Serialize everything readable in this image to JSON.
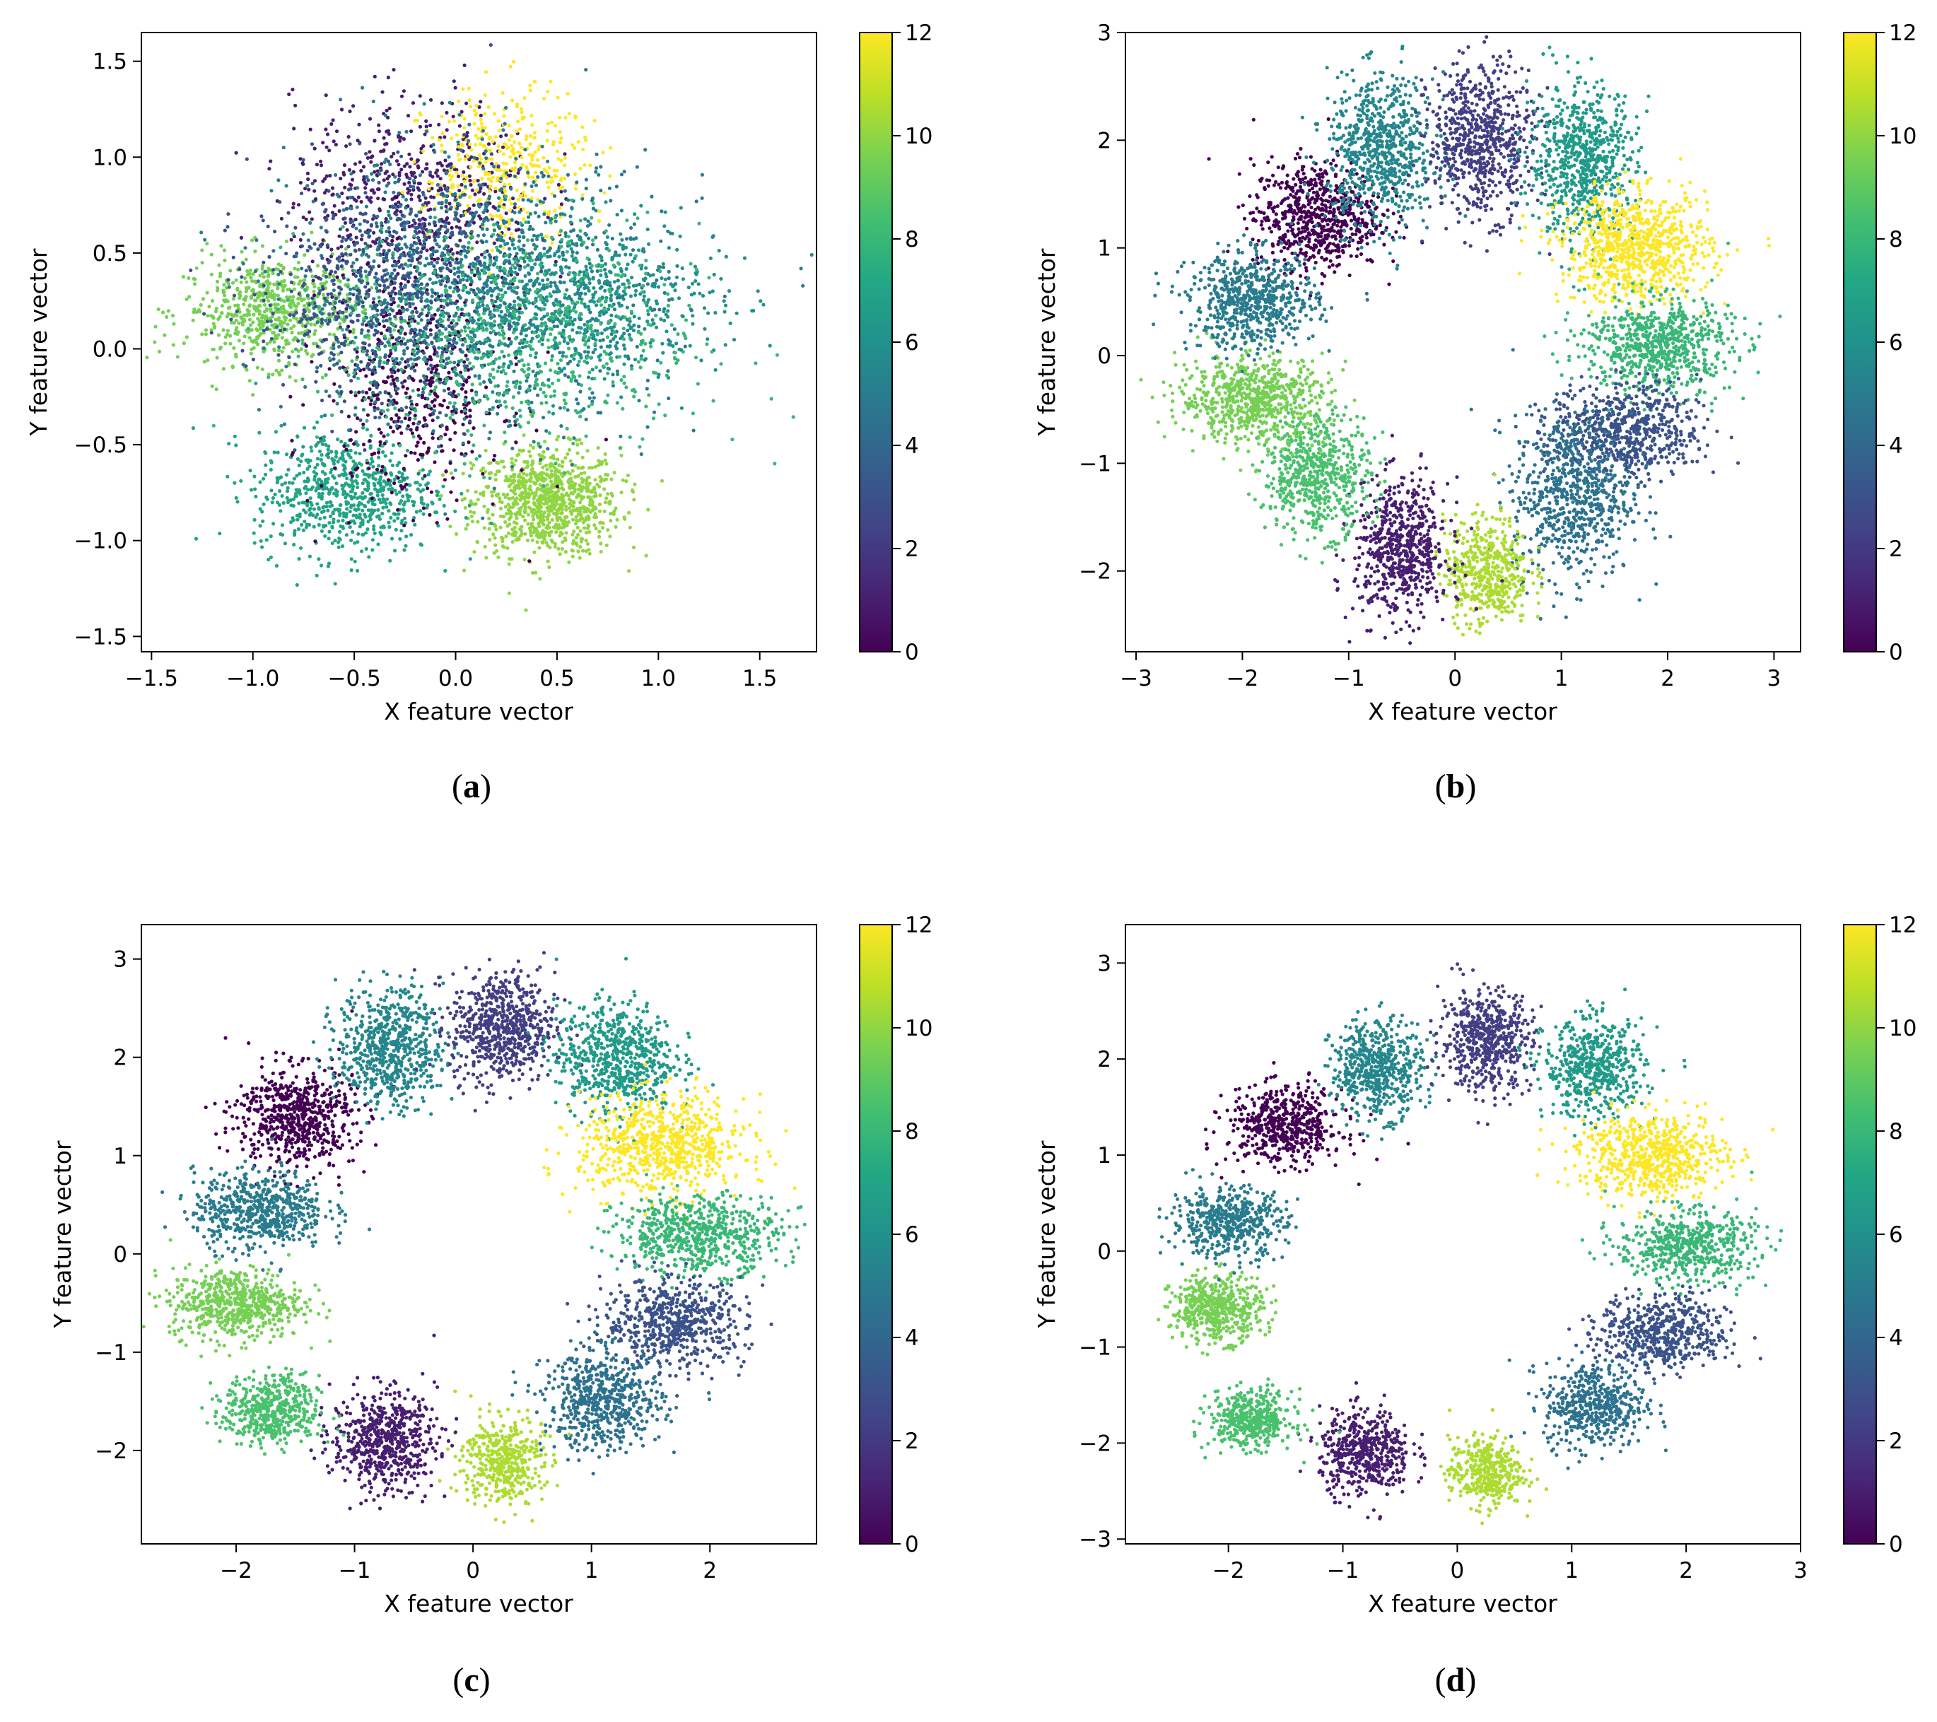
{
  "figure": {
    "panels": [
      {
        "id": "a",
        "caption_label": "a"
      },
      {
        "id": "b",
        "caption_label": "b"
      },
      {
        "id": "c",
        "caption_label": "c"
      },
      {
        "id": "d",
        "caption_label": "d"
      }
    ]
  },
  "chart_data": [
    {
      "type": "scatter",
      "panel": "a",
      "xlabel": "X feature vector",
      "ylabel": "Y feature vector",
      "xlim": [
        -1.55,
        1.78
      ],
      "ylim": [
        -1.58,
        1.65
      ],
      "xticks": [
        -1.5,
        -1.0,
        -0.5,
        0.0,
        0.5,
        1.0,
        1.5
      ],
      "xtick_labels": [
        "−1.5",
        "−1.0",
        "−0.5",
        "0.0",
        "0.5",
        "1.0",
        "1.5"
      ],
      "yticks": [
        -1.5,
        -1.0,
        -0.5,
        0.0,
        0.5,
        1.0,
        1.5
      ],
      "ytick_labels": [
        "−1.5",
        "−1.0",
        "−0.5",
        "0.0",
        "0.5",
        "1.0",
        "1.5"
      ],
      "colorbar": {
        "range": [
          0,
          12
        ],
        "ticks": [
          0,
          2,
          4,
          6,
          8,
          10,
          12
        ],
        "tick_labels": [
          "0",
          "2",
          "4",
          "6",
          "8",
          "10",
          "12"
        ],
        "colormap": "viridis"
      },
      "clusters": [
        {
          "label": 10,
          "center": [
            0.45,
            -0.8
          ],
          "spread": [
            0.18,
            0.14
          ],
          "n": 900
        },
        {
          "label": 9.5,
          "center": [
            -0.9,
            0.2
          ],
          "spread": [
            0.22,
            0.14
          ],
          "n": 650
        },
        {
          "label": 7,
          "center": [
            -0.55,
            -0.75
          ],
          "spread": [
            0.22,
            0.16
          ],
          "n": 700
        },
        {
          "label": 1,
          "center": [
            -0.2,
            0.8
          ],
          "spread": [
            0.3,
            0.25
          ],
          "n": 600
        },
        {
          "label": 0,
          "center": [
            -0.2,
            -0.2
          ],
          "spread": [
            0.22,
            0.3
          ],
          "n": 500
        },
        {
          "label": 12,
          "center": [
            0.25,
            0.95
          ],
          "spread": [
            0.2,
            0.2
          ],
          "n": 380
        },
        {
          "label": 5,
          "center": [
            0.1,
            0.3
          ],
          "spread": [
            0.45,
            0.35
          ],
          "n": 1300
        },
        {
          "label": 6,
          "center": [
            0.6,
            0.25
          ],
          "spread": [
            0.35,
            0.2
          ],
          "n": 700
        },
        {
          "label": 3,
          "center": [
            -0.4,
            0.3
          ],
          "spread": [
            0.3,
            0.3
          ],
          "n": 600
        },
        {
          "label": 8,
          "center": [
            0.3,
            0.05
          ],
          "spread": [
            0.45,
            0.3
          ],
          "n": 700
        }
      ]
    },
    {
      "type": "scatter",
      "panel": "b",
      "xlabel": "X feature vector",
      "ylabel": "Y feature vector",
      "xlim": [
        -3.1,
        3.25
      ],
      "ylim": [
        -2.75,
        3.0
      ],
      "xticks": [
        -3,
        -2,
        -1,
        0,
        1,
        2,
        3
      ],
      "xtick_labels": [
        "−3",
        "−2",
        "−1",
        "0",
        "1",
        "2",
        "3"
      ],
      "yticks": [
        -2,
        -1,
        0,
        1,
        2,
        3
      ],
      "ytick_labels": [
        "−2",
        "−1",
        "0",
        "1",
        "2",
        "3"
      ],
      "colorbar": {
        "range": [
          0,
          12
        ],
        "ticks": [
          0,
          2,
          4,
          6,
          8,
          10,
          12
        ],
        "tick_labels": [
          "0",
          "2",
          "4",
          "6",
          "8",
          "10",
          "12"
        ],
        "colormap": "viridis"
      },
      "clusters": [
        {
          "label": 0,
          "center": [
            -1.3,
            1.3
          ],
          "spread": [
            0.3,
            0.25
          ],
          "n": 700
        },
        {
          "label": 5.5,
          "center": [
            -0.7,
            1.9
          ],
          "spread": [
            0.25,
            0.35
          ],
          "n": 700
        },
        {
          "label": 2.2,
          "center": [
            0.25,
            2.0
          ],
          "spread": [
            0.25,
            0.35
          ],
          "n": 700
        },
        {
          "label": 6.5,
          "center": [
            1.2,
            1.8
          ],
          "spread": [
            0.25,
            0.35
          ],
          "n": 700
        },
        {
          "label": 12,
          "center": [
            1.7,
            1.0
          ],
          "spread": [
            0.35,
            0.25
          ],
          "n": 800
        },
        {
          "label": 8,
          "center": [
            1.9,
            0.1
          ],
          "spread": [
            0.35,
            0.22
          ],
          "n": 700
        },
        {
          "label": 3,
          "center": [
            1.6,
            -0.7
          ],
          "spread": [
            0.35,
            0.22
          ],
          "n": 650
        },
        {
          "label": 4.5,
          "center": [
            1.1,
            -1.3
          ],
          "spread": [
            0.28,
            0.38
          ],
          "n": 700
        },
        {
          "label": 10.5,
          "center": [
            0.3,
            -2.0
          ],
          "spread": [
            0.2,
            0.25
          ],
          "n": 500
        },
        {
          "label": 1,
          "center": [
            -0.5,
            -1.8
          ],
          "spread": [
            0.22,
            0.32
          ],
          "n": 650
        },
        {
          "label": 8.5,
          "center": [
            -1.3,
            -1.1
          ],
          "spread": [
            0.25,
            0.28
          ],
          "n": 600
        },
        {
          "label": 9.5,
          "center": [
            -1.9,
            -0.4
          ],
          "spread": [
            0.35,
            0.2
          ],
          "n": 700
        },
        {
          "label": 5,
          "center": [
            -1.9,
            0.5
          ],
          "spread": [
            0.3,
            0.22
          ],
          "n": 650
        }
      ]
    },
    {
      "type": "scatter",
      "panel": "c",
      "xlabel": "X feature vector",
      "ylabel": "Y feature vector",
      "xlim": [
        -2.8,
        2.9
      ],
      "ylim": [
        -2.95,
        3.35
      ],
      "xticks": [
        -2,
        -1,
        0,
        1,
        2
      ],
      "xtick_labels": [
        "−2",
        "−1",
        "0",
        "1",
        "2"
      ],
      "yticks": [
        -2,
        -1,
        0,
        1,
        2,
        3
      ],
      "ytick_labels": [
        "−2",
        "−1",
        "0",
        "1",
        "2",
        "3"
      ],
      "colorbar": {
        "range": [
          0,
          12
        ],
        "ticks": [
          0,
          2,
          4,
          6,
          8,
          10,
          12
        ],
        "tick_labels": [
          "0",
          "2",
          "4",
          "6",
          "8",
          "10",
          "12"
        ],
        "colormap": "viridis"
      },
      "clusters": [
        {
          "label": 0,
          "center": [
            -1.5,
            1.4
          ],
          "spread": [
            0.25,
            0.25
          ],
          "n": 650
        },
        {
          "label": 5.5,
          "center": [
            -0.7,
            2.1
          ],
          "spread": [
            0.22,
            0.3
          ],
          "n": 650
        },
        {
          "label": 2.2,
          "center": [
            0.25,
            2.3
          ],
          "spread": [
            0.22,
            0.28
          ],
          "n": 650
        },
        {
          "label": 6.5,
          "center": [
            1.2,
            2.0
          ],
          "spread": [
            0.25,
            0.28
          ],
          "n": 650
        },
        {
          "label": 12,
          "center": [
            1.6,
            1.1
          ],
          "spread": [
            0.35,
            0.25
          ],
          "n": 750
        },
        {
          "label": 8,
          "center": [
            1.9,
            0.2
          ],
          "spread": [
            0.35,
            0.2
          ],
          "n": 650
        },
        {
          "label": 3,
          "center": [
            1.7,
            -0.7
          ],
          "spread": [
            0.3,
            0.22
          ],
          "n": 600
        },
        {
          "label": 4.5,
          "center": [
            1.1,
            -1.5
          ],
          "spread": [
            0.25,
            0.25
          ],
          "n": 600
        },
        {
          "label": 10.5,
          "center": [
            0.25,
            -2.1
          ],
          "spread": [
            0.17,
            0.22
          ],
          "n": 450
        },
        {
          "label": 1,
          "center": [
            -0.75,
            -1.9
          ],
          "spread": [
            0.22,
            0.25
          ],
          "n": 600
        },
        {
          "label": 8.5,
          "center": [
            -1.7,
            -1.6
          ],
          "spread": [
            0.2,
            0.18
          ],
          "n": 500
        },
        {
          "label": 9.5,
          "center": [
            -2.0,
            -0.5
          ],
          "spread": [
            0.28,
            0.18
          ],
          "n": 600
        },
        {
          "label": 5,
          "center": [
            -1.8,
            0.45
          ],
          "spread": [
            0.28,
            0.2
          ],
          "n": 600
        }
      ]
    },
    {
      "type": "scatter",
      "panel": "d",
      "xlabel": "X feature vector",
      "ylabel": "Y feature vector",
      "xlim": [
        -2.9,
        3.0
      ],
      "ylim": [
        -3.05,
        3.4
      ],
      "xticks": [
        -2,
        -1,
        0,
        1,
        2,
        3
      ],
      "xtick_labels": [
        "−2",
        "−1",
        "0",
        "1",
        "2",
        "3"
      ],
      "yticks": [
        -3,
        -2,
        -1,
        0,
        1,
        2,
        3
      ],
      "ytick_labels": [
        "−3",
        "−2",
        "−1",
        "0",
        "1",
        "2",
        "3"
      ],
      "colorbar": {
        "range": [
          0,
          12
        ],
        "ticks": [
          0,
          2,
          4,
          6,
          8,
          10,
          12
        ],
        "tick_labels": [
          "0",
          "2",
          "4",
          "6",
          "8",
          "10",
          "12"
        ],
        "colormap": "viridis"
      },
      "clusters": [
        {
          "label": 0,
          "center": [
            -1.5,
            1.3
          ],
          "spread": [
            0.25,
            0.2
          ],
          "n": 550
        },
        {
          "label": 5.5,
          "center": [
            -0.7,
            1.9
          ],
          "spread": [
            0.2,
            0.25
          ],
          "n": 550
        },
        {
          "label": 2.2,
          "center": [
            0.25,
            2.2
          ],
          "spread": [
            0.2,
            0.26
          ],
          "n": 550
        },
        {
          "label": 6.5,
          "center": [
            1.2,
            1.9
          ],
          "spread": [
            0.22,
            0.25
          ],
          "n": 550
        },
        {
          "label": 12,
          "center": [
            1.7,
            1.0
          ],
          "spread": [
            0.32,
            0.22
          ],
          "n": 650
        },
        {
          "label": 8,
          "center": [
            2.0,
            0.05
          ],
          "spread": [
            0.3,
            0.18
          ],
          "n": 550
        },
        {
          "label": 3,
          "center": [
            1.8,
            -0.85
          ],
          "spread": [
            0.28,
            0.2
          ],
          "n": 550
        },
        {
          "label": 4.5,
          "center": [
            1.2,
            -1.6
          ],
          "spread": [
            0.22,
            0.22
          ],
          "n": 500
        },
        {
          "label": 10.5,
          "center": [
            0.25,
            -2.3
          ],
          "spread": [
            0.16,
            0.18
          ],
          "n": 400
        },
        {
          "label": 1,
          "center": [
            -0.8,
            -2.1
          ],
          "spread": [
            0.2,
            0.22
          ],
          "n": 500
        },
        {
          "label": 8.5,
          "center": [
            -1.8,
            -1.75
          ],
          "spread": [
            0.18,
            0.15
          ],
          "n": 450
        },
        {
          "label": 9.5,
          "center": [
            -2.1,
            -0.6
          ],
          "spread": [
            0.2,
            0.17
          ],
          "n": 500
        },
        {
          "label": 5,
          "center": [
            -2.0,
            0.3
          ],
          "spread": [
            0.25,
            0.18
          ],
          "n": 500
        }
      ]
    }
  ]
}
